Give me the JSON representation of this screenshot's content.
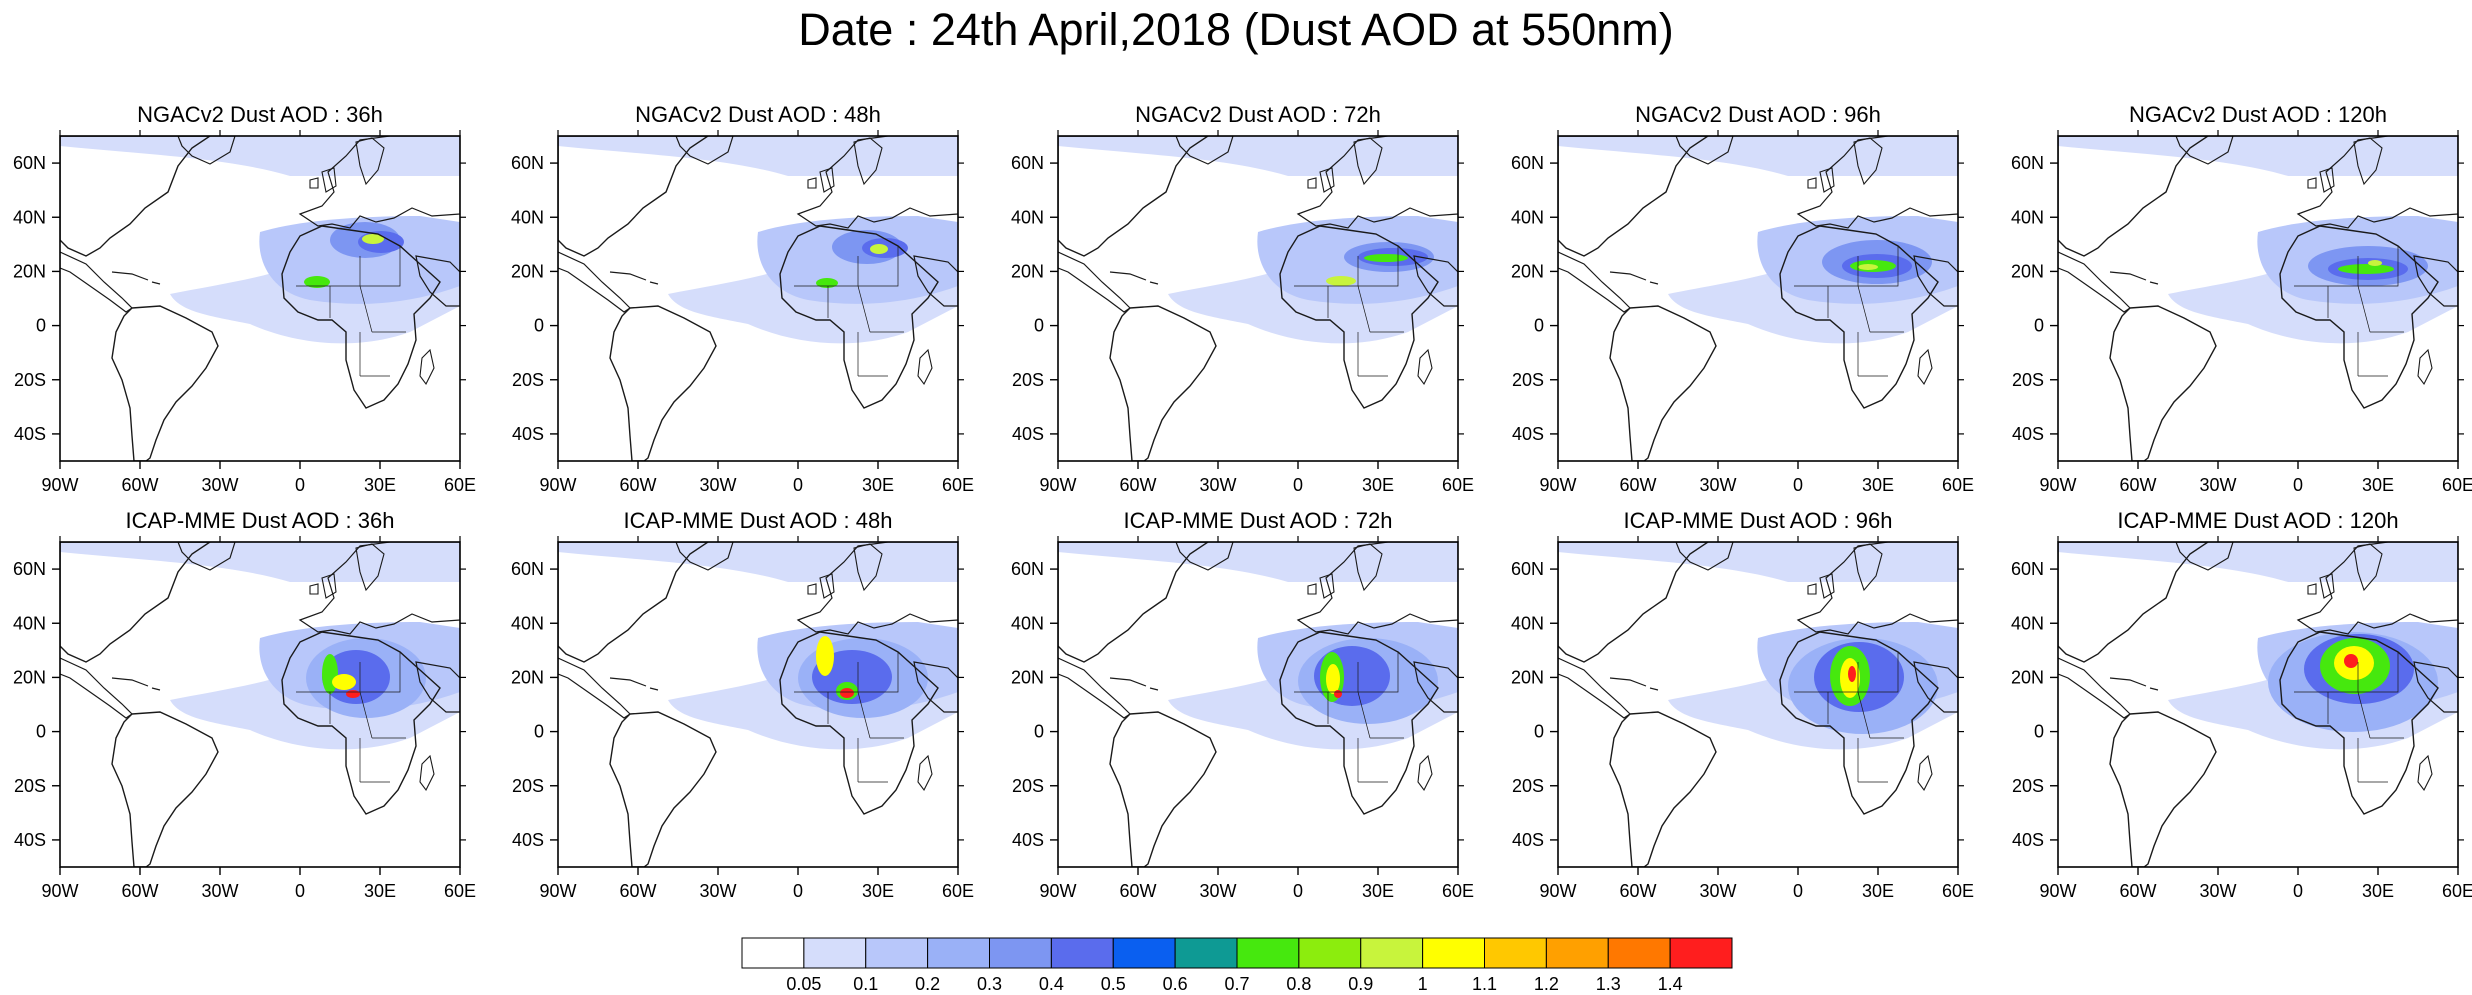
{
  "title": "Date : 24th April,2018 (Dust AOD at 550nm)",
  "axes": {
    "lon_ticks": [
      "90W",
      "60W",
      "30W",
      "0",
      "30E",
      "60E"
    ],
    "lat_ticks": [
      "60N",
      "40N",
      "20N",
      "0",
      "20S",
      "40S"
    ],
    "lon_range": [
      -90,
      60
    ],
    "lat_range": [
      -50,
      70
    ]
  },
  "panels": [
    {
      "title": "NGACv2 Dust AOD : 36h"
    },
    {
      "title": "NGACv2 Dust AOD : 48h"
    },
    {
      "title": "NGACv2 Dust AOD : 72h"
    },
    {
      "title": "NGACv2 Dust AOD : 96h"
    },
    {
      "title": "NGACv2 Dust AOD : 120h"
    },
    {
      "title": "ICAP-MME Dust AOD : 36h"
    },
    {
      "title": "ICAP-MME Dust AOD : 48h"
    },
    {
      "title": "ICAP-MME Dust AOD : 72h"
    },
    {
      "title": "ICAP-MME Dust AOD : 96h"
    },
    {
      "title": "ICAP-MME Dust AOD : 120h"
    }
  ],
  "colorbar": {
    "labels": [
      "0.05",
      "0.1",
      "0.2",
      "0.3",
      "0.4",
      "0.5",
      "0.6",
      "0.7",
      "0.8",
      "0.9",
      "1",
      "1.1",
      "1.2",
      "1.3",
      "1.4"
    ],
    "colors": [
      "#ffffff",
      "#d5ddfb",
      "#b8c7fa",
      "#9ab1f7",
      "#7d96f2",
      "#5a6ced",
      "#0a5ff0",
      "#0e9a94",
      "#46e80e",
      "#8ced0d",
      "#c8f43c",
      "#ffff00",
      "#ffc800",
      "#ffa000",
      "#ff7800",
      "#ff1e1e"
    ]
  },
  "map_palette": {
    "land_fill": "#ffffff",
    "coast": "#1a1a1a",
    "dust_light": "#d5ddfb",
    "dust_mid": "#9ab1f7",
    "dust_strong": "#5a6ced",
    "dust_hot": "#ffff00",
    "dust_peak": "#ff1e1e"
  }
}
